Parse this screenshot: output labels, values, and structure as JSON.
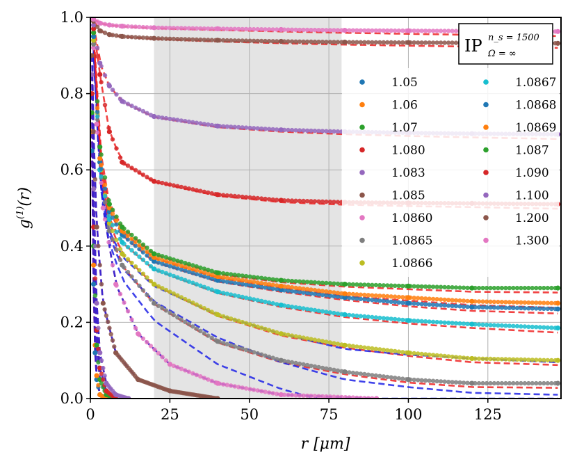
{
  "chart_data": {
    "type": "scatter",
    "title": "",
    "xlabel": "r [μm]",
    "xlabel_var": "r",
    "xlabel_unit": "[μm]",
    "ylabel": "g(1)(r)",
    "ylabel_main": "g",
    "ylabel_sup": "(1)",
    "ylabel_arg": "(r)",
    "xlim": [
      0,
      148
    ],
    "ylim": [
      0,
      1.0
    ],
    "xticks": [
      0,
      25,
      50,
      75,
      100,
      125
    ],
    "yticks": [
      0.0,
      0.2,
      0.4,
      0.6,
      0.8,
      1.0
    ],
    "ytick_labels": [
      "0.0",
      "0.2",
      "0.4",
      "0.6",
      "0.8",
      "1.0"
    ],
    "grid": true,
    "shaded_region": [
      20,
      79
    ],
    "annotation": {
      "main": "IP",
      "superscript": "n_s = 1500",
      "subscript": "Ω = ∞",
      "placement": "top-right"
    },
    "legend_placement": "right",
    "fit_lines": [
      {
        "name": "red dashed fit",
        "style": "dashed",
        "color": "#ee2222"
      },
      {
        "name": "blue dashed fit",
        "style": "dashed",
        "color": "#1f22e6"
      }
    ],
    "series": [
      {
        "name": "1.05",
        "color": "#1f77b4",
        "x": [
          0.5,
          1,
          1.5,
          2,
          3,
          5
        ],
        "y": [
          0.65,
          0.3,
          0.12,
          0.05,
          0.01,
          0.0
        ]
      },
      {
        "name": "1.06",
        "color": "#ff7f0e",
        "x": [
          0.5,
          1,
          1.5,
          2,
          3,
          5
        ],
        "y": [
          0.7,
          0.35,
          0.14,
          0.06,
          0.01,
          0.0
        ]
      },
      {
        "name": "1.07",
        "color": "#2ca02c",
        "x": [
          0.5,
          1,
          2,
          3,
          5,
          8
        ],
        "y": [
          0.75,
          0.4,
          0.14,
          0.05,
          0.01,
          0.0
        ]
      },
      {
        "name": "1.080",
        "color": "#d62728",
        "x": [
          0.5,
          1,
          2,
          3,
          5,
          8
        ],
        "y": [
          0.8,
          0.45,
          0.18,
          0.08,
          0.02,
          0.0
        ]
      },
      {
        "name": "1.083",
        "color": "#9467bd",
        "x": [
          0.5,
          1,
          2,
          3,
          5,
          8,
          12
        ],
        "y": [
          0.85,
          0.55,
          0.25,
          0.12,
          0.04,
          0.01,
          0.0
        ]
      },
      {
        "name": "1.085",
        "color": "#8c564b",
        "x": [
          0.5,
          1,
          2,
          4,
          8,
          15,
          25,
          40
        ],
        "y": [
          0.9,
          0.7,
          0.45,
          0.25,
          0.12,
          0.05,
          0.02,
          0.0
        ]
      },
      {
        "name": "1.0860",
        "color": "#e377c2",
        "x": [
          1,
          2,
          4,
          8,
          15,
          25,
          40,
          60,
          90
        ],
        "y": [
          0.92,
          0.72,
          0.5,
          0.3,
          0.17,
          0.09,
          0.04,
          0.01,
          0.0
        ]
      },
      {
        "name": "1.0865",
        "color": "#7f7f7f",
        "x": [
          1,
          3,
          6,
          10,
          20,
          40,
          60,
          80,
          100,
          120,
          147
        ],
        "y": [
          0.93,
          0.6,
          0.44,
          0.35,
          0.25,
          0.15,
          0.1,
          0.07,
          0.05,
          0.04,
          0.04
        ]
      },
      {
        "name": "1.0866",
        "color": "#bcbd22",
        "x": [
          1,
          3,
          6,
          10,
          20,
          40,
          60,
          80,
          100,
          120,
          147
        ],
        "y": [
          0.94,
          0.62,
          0.46,
          0.38,
          0.3,
          0.22,
          0.17,
          0.14,
          0.12,
          0.105,
          0.1
        ]
      },
      {
        "name": "1.0867",
        "color": "#17becf",
        "x": [
          1,
          3,
          6,
          10,
          20,
          40,
          60,
          80,
          100,
          120,
          147
        ],
        "y": [
          0.95,
          0.6,
          0.47,
          0.41,
          0.34,
          0.28,
          0.245,
          0.22,
          0.205,
          0.195,
          0.185
        ]
      },
      {
        "name": "1.0868",
        "color": "#1f77b4",
        "x": [
          1,
          3,
          6,
          10,
          20,
          40,
          60,
          80,
          100,
          120,
          147
        ],
        "y": [
          0.95,
          0.62,
          0.49,
          0.43,
          0.36,
          0.31,
          0.285,
          0.265,
          0.25,
          0.24,
          0.235
        ]
      },
      {
        "name": "1.0869",
        "color": "#ff7f0e",
        "x": [
          1,
          3,
          6,
          10,
          20,
          40,
          60,
          80,
          100,
          120,
          147
        ],
        "y": [
          0.96,
          0.63,
          0.5,
          0.44,
          0.37,
          0.32,
          0.295,
          0.275,
          0.265,
          0.255,
          0.25
        ]
      },
      {
        "name": "1.087",
        "color": "#2ca02c",
        "x": [
          1,
          3,
          6,
          10,
          20,
          40,
          60,
          80,
          100,
          120,
          147
        ],
        "y": [
          0.96,
          0.66,
          0.51,
          0.45,
          0.38,
          0.33,
          0.31,
          0.3,
          0.295,
          0.29,
          0.29
        ]
      },
      {
        "name": "1.090",
        "color": "#d62728",
        "x": [
          1,
          3,
          6,
          10,
          20,
          40,
          60,
          80,
          100,
          120,
          147
        ],
        "y": [
          0.97,
          0.85,
          0.7,
          0.62,
          0.57,
          0.535,
          0.52,
          0.515,
          0.513,
          0.512,
          0.51
        ]
      },
      {
        "name": "1.100",
        "color": "#9467bd",
        "x": [
          1,
          3,
          6,
          10,
          20,
          40,
          60,
          80,
          100,
          120,
          147
        ],
        "y": [
          0.98,
          0.88,
          0.82,
          0.78,
          0.74,
          0.715,
          0.705,
          0.7,
          0.697,
          0.695,
          0.693
        ]
      },
      {
        "name": "1.200",
        "color": "#8c564b",
        "x": [
          1,
          3,
          6,
          10,
          20,
          40,
          60,
          80,
          100,
          120,
          147
        ],
        "y": [
          0.99,
          0.965,
          0.955,
          0.95,
          0.945,
          0.94,
          0.937,
          0.935,
          0.934,
          0.933,
          0.932
        ]
      },
      {
        "name": "1.300",
        "color": "#e377c2",
        "x": [
          1,
          3,
          6,
          10,
          20,
          40,
          60,
          80,
          100,
          120,
          147
        ],
        "y": [
          0.995,
          0.985,
          0.98,
          0.977,
          0.973,
          0.97,
          0.968,
          0.966,
          0.965,
          0.964,
          0.963
        ]
      }
    ]
  }
}
